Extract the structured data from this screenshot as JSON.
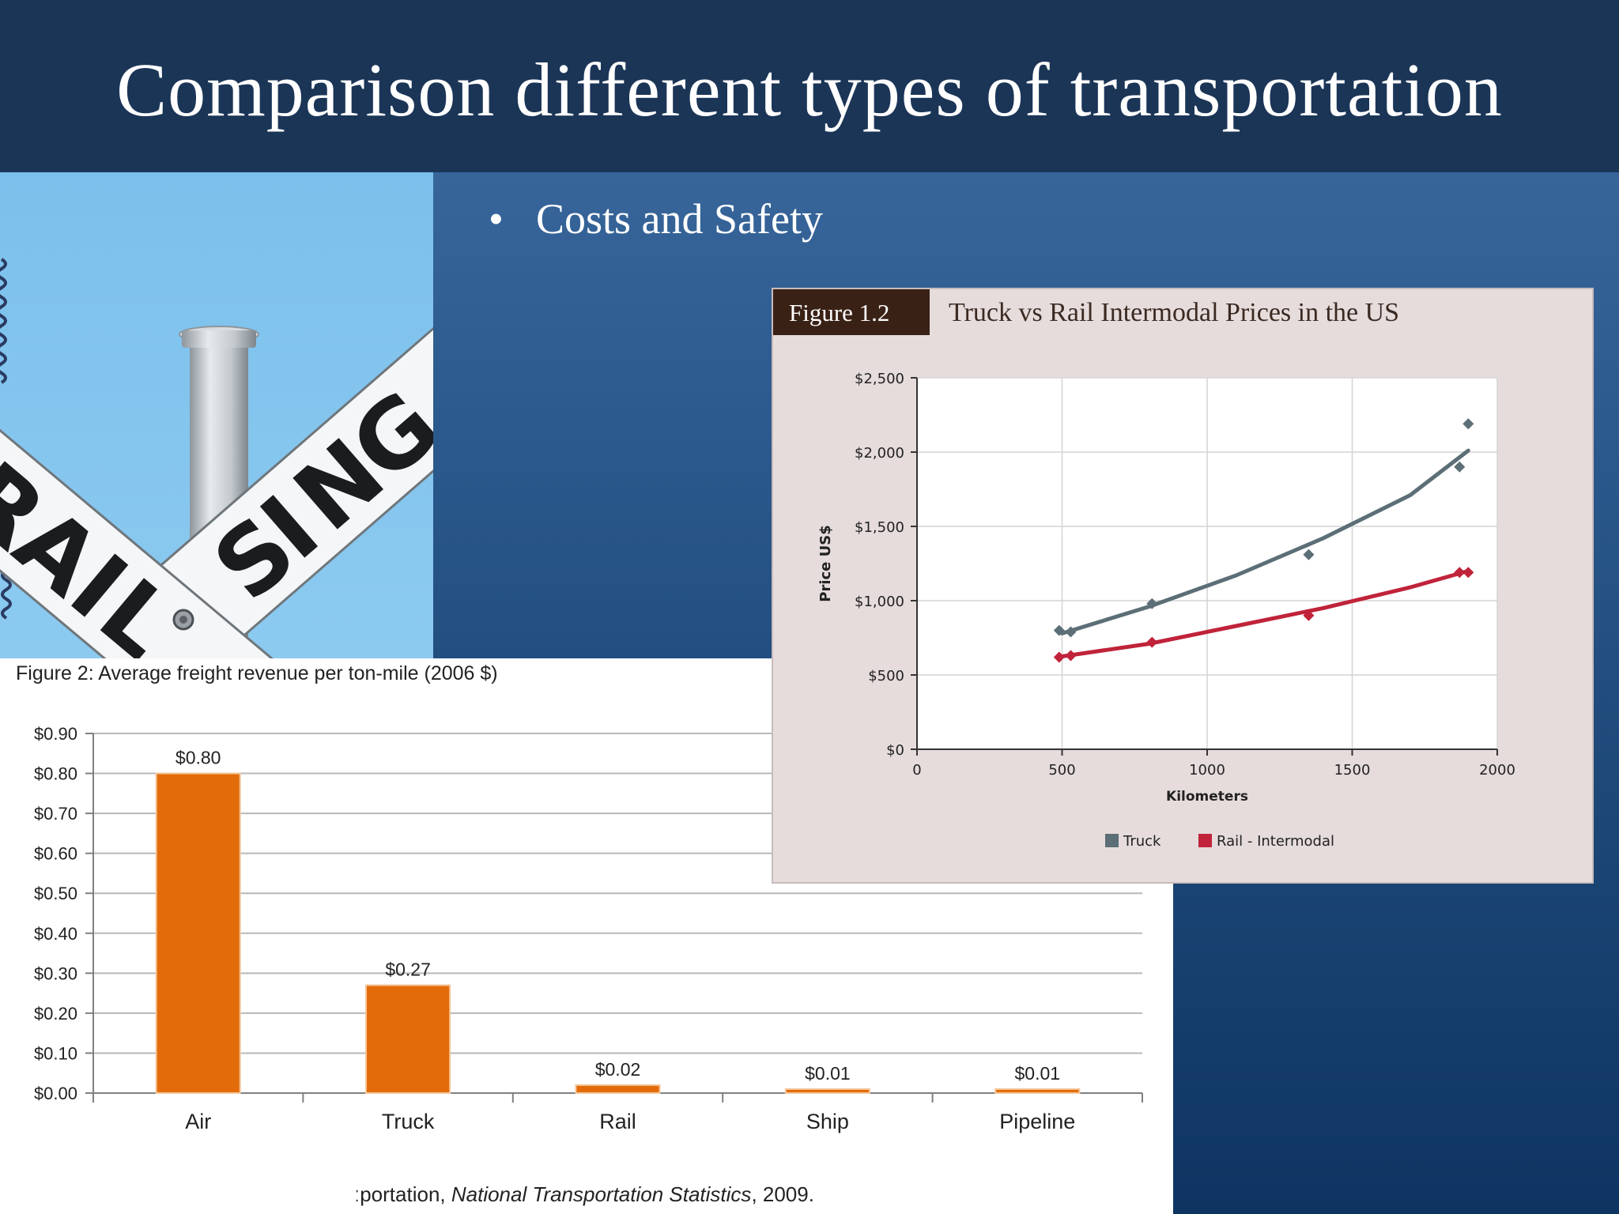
{
  "slide": {
    "title": "Comparison different types of transportation",
    "bullets": [
      "Costs and Safety"
    ],
    "photo_sign_text": [
      "RAIL",
      "SING"
    ]
  },
  "figure2": {
    "caption": "Figure 2: Average freight revenue per ton-mile (2006 $)",
    "source": "ːportation, National Transportation Statistics, 2009.",
    "source_prefix": "ːportation, ",
    "source_italic": "National Transportation Statistics",
    "source_suffix": ", 2009."
  },
  "figure12": {
    "badge": "Figure 1.2",
    "title": "Truck vs Rail Intermodal Prices in the US"
  },
  "colors": {
    "title_bar": "#1b3557",
    "bar": "#e36c0a",
    "truck": "#5c6e76",
    "rail": "#c0233a"
  },
  "chart_data": [
    {
      "type": "bar",
      "title": "Figure 2: Average freight revenue per ton-mile (2006 $)",
      "categories": [
        "Air",
        "Truck",
        "Rail",
        "Ship",
        "Pipeline"
      ],
      "values": [
        0.8,
        0.27,
        0.02,
        0.01,
        0.01
      ],
      "data_labels": [
        "$0.80",
        "$0.27",
        "$0.02",
        "$0.01",
        "$0.01"
      ],
      "ylim": [
        0,
        0.9
      ],
      "y_ticks": [
        "$0.00",
        "$0.10",
        "$0.20",
        "$0.30",
        "$0.40",
        "$0.50",
        "$0.60",
        "$0.70",
        "$0.80",
        "$0.90"
      ],
      "grid": true
    },
    {
      "type": "scatter",
      "title": "Truck vs Rail Intermodal Prices in the US",
      "xlabel": "Kilometers",
      "ylabel": "Price US$",
      "xlim": [
        0,
        2000
      ],
      "ylim": [
        0,
        2500
      ],
      "x_ticks": [
        "0",
        "500",
        "1000",
        "1500",
        "2000"
      ],
      "y_ticks": [
        "$0",
        "$500",
        "$1,000",
        "$1,500",
        "$2,000",
        "$2,500"
      ],
      "grid": true,
      "legend": "bottom",
      "series": [
        {
          "name": "Truck",
          "points": [
            [
              490,
              800
            ],
            [
              530,
              790
            ],
            [
              810,
              980
            ],
            [
              1350,
              1310
            ],
            [
              1870,
              1900
            ],
            [
              1900,
              2190
            ]
          ],
          "trend": [
            [
              500,
              780
            ],
            [
              800,
              960
            ],
            [
              1100,
              1170
            ],
            [
              1400,
              1420
            ],
            [
              1700,
              1710
            ],
            [
              1900,
              2010
            ]
          ]
        },
        {
          "name": "Rail - Intermodal",
          "points": [
            [
              490,
              620
            ],
            [
              530,
              630
            ],
            [
              810,
              720
            ],
            [
              1350,
              900
            ],
            [
              1870,
              1190
            ],
            [
              1900,
              1190
            ]
          ],
          "trend": [
            [
              500,
              625
            ],
            [
              800,
              710
            ],
            [
              1100,
              830
            ],
            [
              1400,
              950
            ],
            [
              1700,
              1090
            ],
            [
              1900,
              1200
            ]
          ]
        }
      ]
    }
  ]
}
